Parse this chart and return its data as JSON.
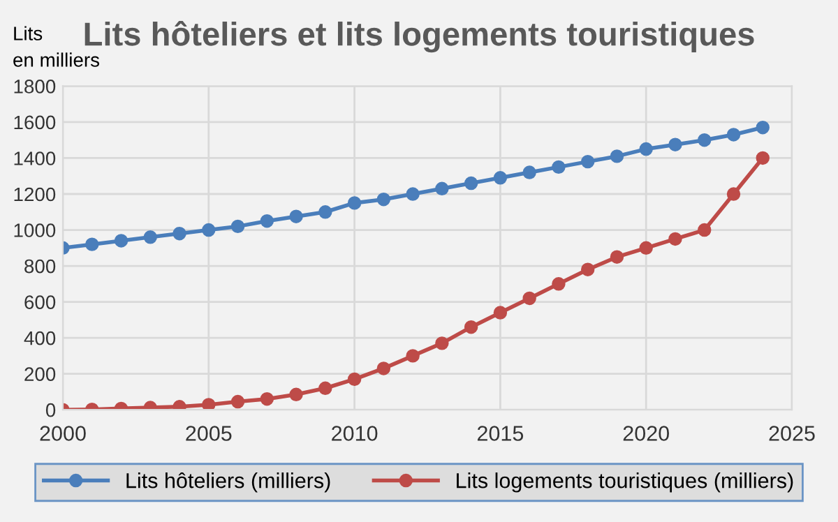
{
  "chart_data": {
    "type": "line",
    "title": "Lits hôteliers et lits logements touristiques",
    "ylabel": "Lits\nen milliers",
    "x": [
      2000,
      2001,
      2002,
      2003,
      2004,
      2005,
      2006,
      2007,
      2008,
      2009,
      2010,
      2011,
      2012,
      2013,
      2014,
      2015,
      2016,
      2017,
      2018,
      2019,
      2020,
      2021,
      2022,
      2023,
      2024
    ],
    "series": [
      {
        "name": "Lits hôteliers (milliers)",
        "color": "#4a7ebb",
        "values": [
          900,
          920,
          940,
          960,
          980,
          1000,
          1020,
          1050,
          1075,
          1100,
          1150,
          1170,
          1200,
          1230,
          1260,
          1290,
          1320,
          1350,
          1380,
          1410,
          1450,
          1475,
          1500,
          1530,
          1570
        ]
      },
      {
        "name": "Lits logements touristiques (milliers)",
        "color": "#be4b48",
        "values": [
          0,
          2,
          7,
          12,
          17,
          28,
          45,
          60,
          85,
          120,
          170,
          230,
          300,
          370,
          460,
          540,
          620,
          700,
          780,
          850,
          900,
          950,
          1000,
          1200,
          1400
        ]
      }
    ],
    "xlim": [
      2000,
      2025
    ],
    "xticks": [
      2000,
      2005,
      2010,
      2015,
      2020,
      2025
    ],
    "ylim": [
      0,
      1800
    ],
    "yticks": [
      0,
      200,
      400,
      600,
      800,
      1000,
      1200,
      1400,
      1600,
      1800
    ],
    "grid": true,
    "legend": "bottom",
    "marker": "circle",
    "line_style": "solid"
  }
}
